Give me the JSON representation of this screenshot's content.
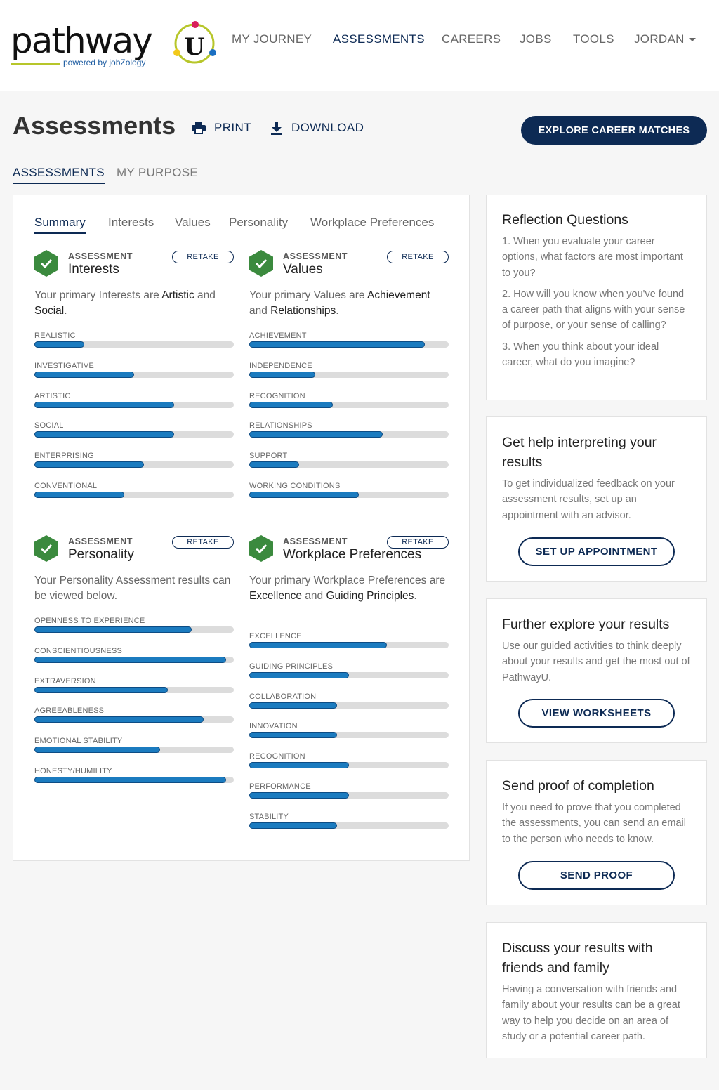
{
  "header": {
    "logo_text": "pathway",
    "logo_u": "U",
    "logo_powered": "powered by jobZology",
    "nav": [
      "MY JOURNEY",
      "ASSESSMENTS",
      "CAREERS",
      "JOBS",
      "TOOLS",
      "JORDAN"
    ]
  },
  "page": {
    "title": "Assessments",
    "print_label": "PRINT",
    "download_label": "DOWNLOAD",
    "explore_label": "EXPLORE CAREER MATCHES",
    "subtabs": [
      "ASSESSMENTS",
      "MY PURPOSE"
    ],
    "inner_tabs": [
      "Summary",
      "Interests",
      "Values",
      "Personality",
      "Workplace Preferences"
    ]
  },
  "colors": {
    "navy": "#0d2a54",
    "bar_blue": "#1b7bbf",
    "check_green": "#3b8a3e"
  },
  "assessments": {
    "kicker": "ASSESSMENT",
    "retake": "RETAKE",
    "interests": {
      "name": "Interests",
      "summary": [
        "Your primary Interests are ",
        "Artistic",
        " and ",
        "Social",
        "."
      ],
      "bars": [
        {
          "label": "REALISTIC",
          "value": 0.25
        },
        {
          "label": "INVESTIGATIVE",
          "value": 0.5
        },
        {
          "label": "ARTISTIC",
          "value": 0.7
        },
        {
          "label": "SOCIAL",
          "value": 0.7
        },
        {
          "label": "ENTERPRISING",
          "value": 0.55
        },
        {
          "label": "CONVENTIONAL",
          "value": 0.45
        }
      ]
    },
    "values": {
      "name": "Values",
      "summary": [
        "Your primary Values are ",
        "Achievement",
        " and ",
        "Relationships",
        "."
      ],
      "bars": [
        {
          "label": "ACHIEVEMENT",
          "value": 0.88
        },
        {
          "label": "INDEPENDENCE",
          "value": 0.33
        },
        {
          "label": "RECOGNITION",
          "value": 0.42
        },
        {
          "label": "RELATIONSHIPS",
          "value": 0.67
        },
        {
          "label": "SUPPORT",
          "value": 0.25
        },
        {
          "label": "WORKING CONDITIONS",
          "value": 0.55
        }
      ]
    },
    "personality": {
      "name": "Personality",
      "summary_plain": "Your Personality Assessment results can be viewed below.",
      "bars": [
        {
          "label": "OPENNESS TO EXPERIENCE",
          "value": 0.79
        },
        {
          "label": "CONSCIENTIOUSNESS",
          "value": 0.96
        },
        {
          "label": "EXTRAVERSION",
          "value": 0.67
        },
        {
          "label": "AGREEABLENESS",
          "value": 0.85
        },
        {
          "label": "EMOTIONAL STABILITY",
          "value": 0.63
        },
        {
          "label": "HONESTY/HUMILITY",
          "value": 0.96
        }
      ]
    },
    "workplace": {
      "name": "Workplace Preferences",
      "summary": [
        "Your primary Workplace Preferences are ",
        "Excellence",
        " and ",
        "Guiding Principles",
        "."
      ],
      "bars": [
        {
          "label": "EXCELLENCE",
          "value": 0.69
        },
        {
          "label": "GUIDING PRINCIPLES",
          "value": 0.5
        },
        {
          "label": "COLLABORATION",
          "value": 0.44
        },
        {
          "label": "INNOVATION",
          "value": 0.44
        },
        {
          "label": "RECOGNITION",
          "value": 0.5
        },
        {
          "label": "PERFORMANCE",
          "value": 0.5
        },
        {
          "label": "STABILITY",
          "value": 0.44
        }
      ]
    }
  },
  "sidebar": {
    "reflection": {
      "title": "Reflection Questions",
      "questions": [
        "1. When you evaluate your career options, what factors are most important to you?",
        "2. How will you know when you've found a career path that aligns with your sense of purpose, or your sense of calling?",
        "3. When you think about your ideal career, what do you imagine?"
      ]
    },
    "help": {
      "title": "Get help interpreting your results",
      "text": "To get individualized feedback on your assessment results, set up an appointment with an advisor.",
      "button": "SET UP APPOINTMENT"
    },
    "explore": {
      "title": "Further explore your results",
      "text": "Use our guided activities to think deeply about your results and get the most out of PathwayU.",
      "button": "VIEW WORKSHEETS"
    },
    "proof": {
      "title": "Send proof of completion",
      "text": "If you need to prove that you completed the assessments, you can send an email to the person who needs to know.",
      "button": "SEND PROOF"
    },
    "discuss": {
      "title": "Discuss your results with friends and family",
      "text": "Having a conversation with friends and family about your results can be a great way to help you decide on an area of study or a potential career path."
    }
  }
}
